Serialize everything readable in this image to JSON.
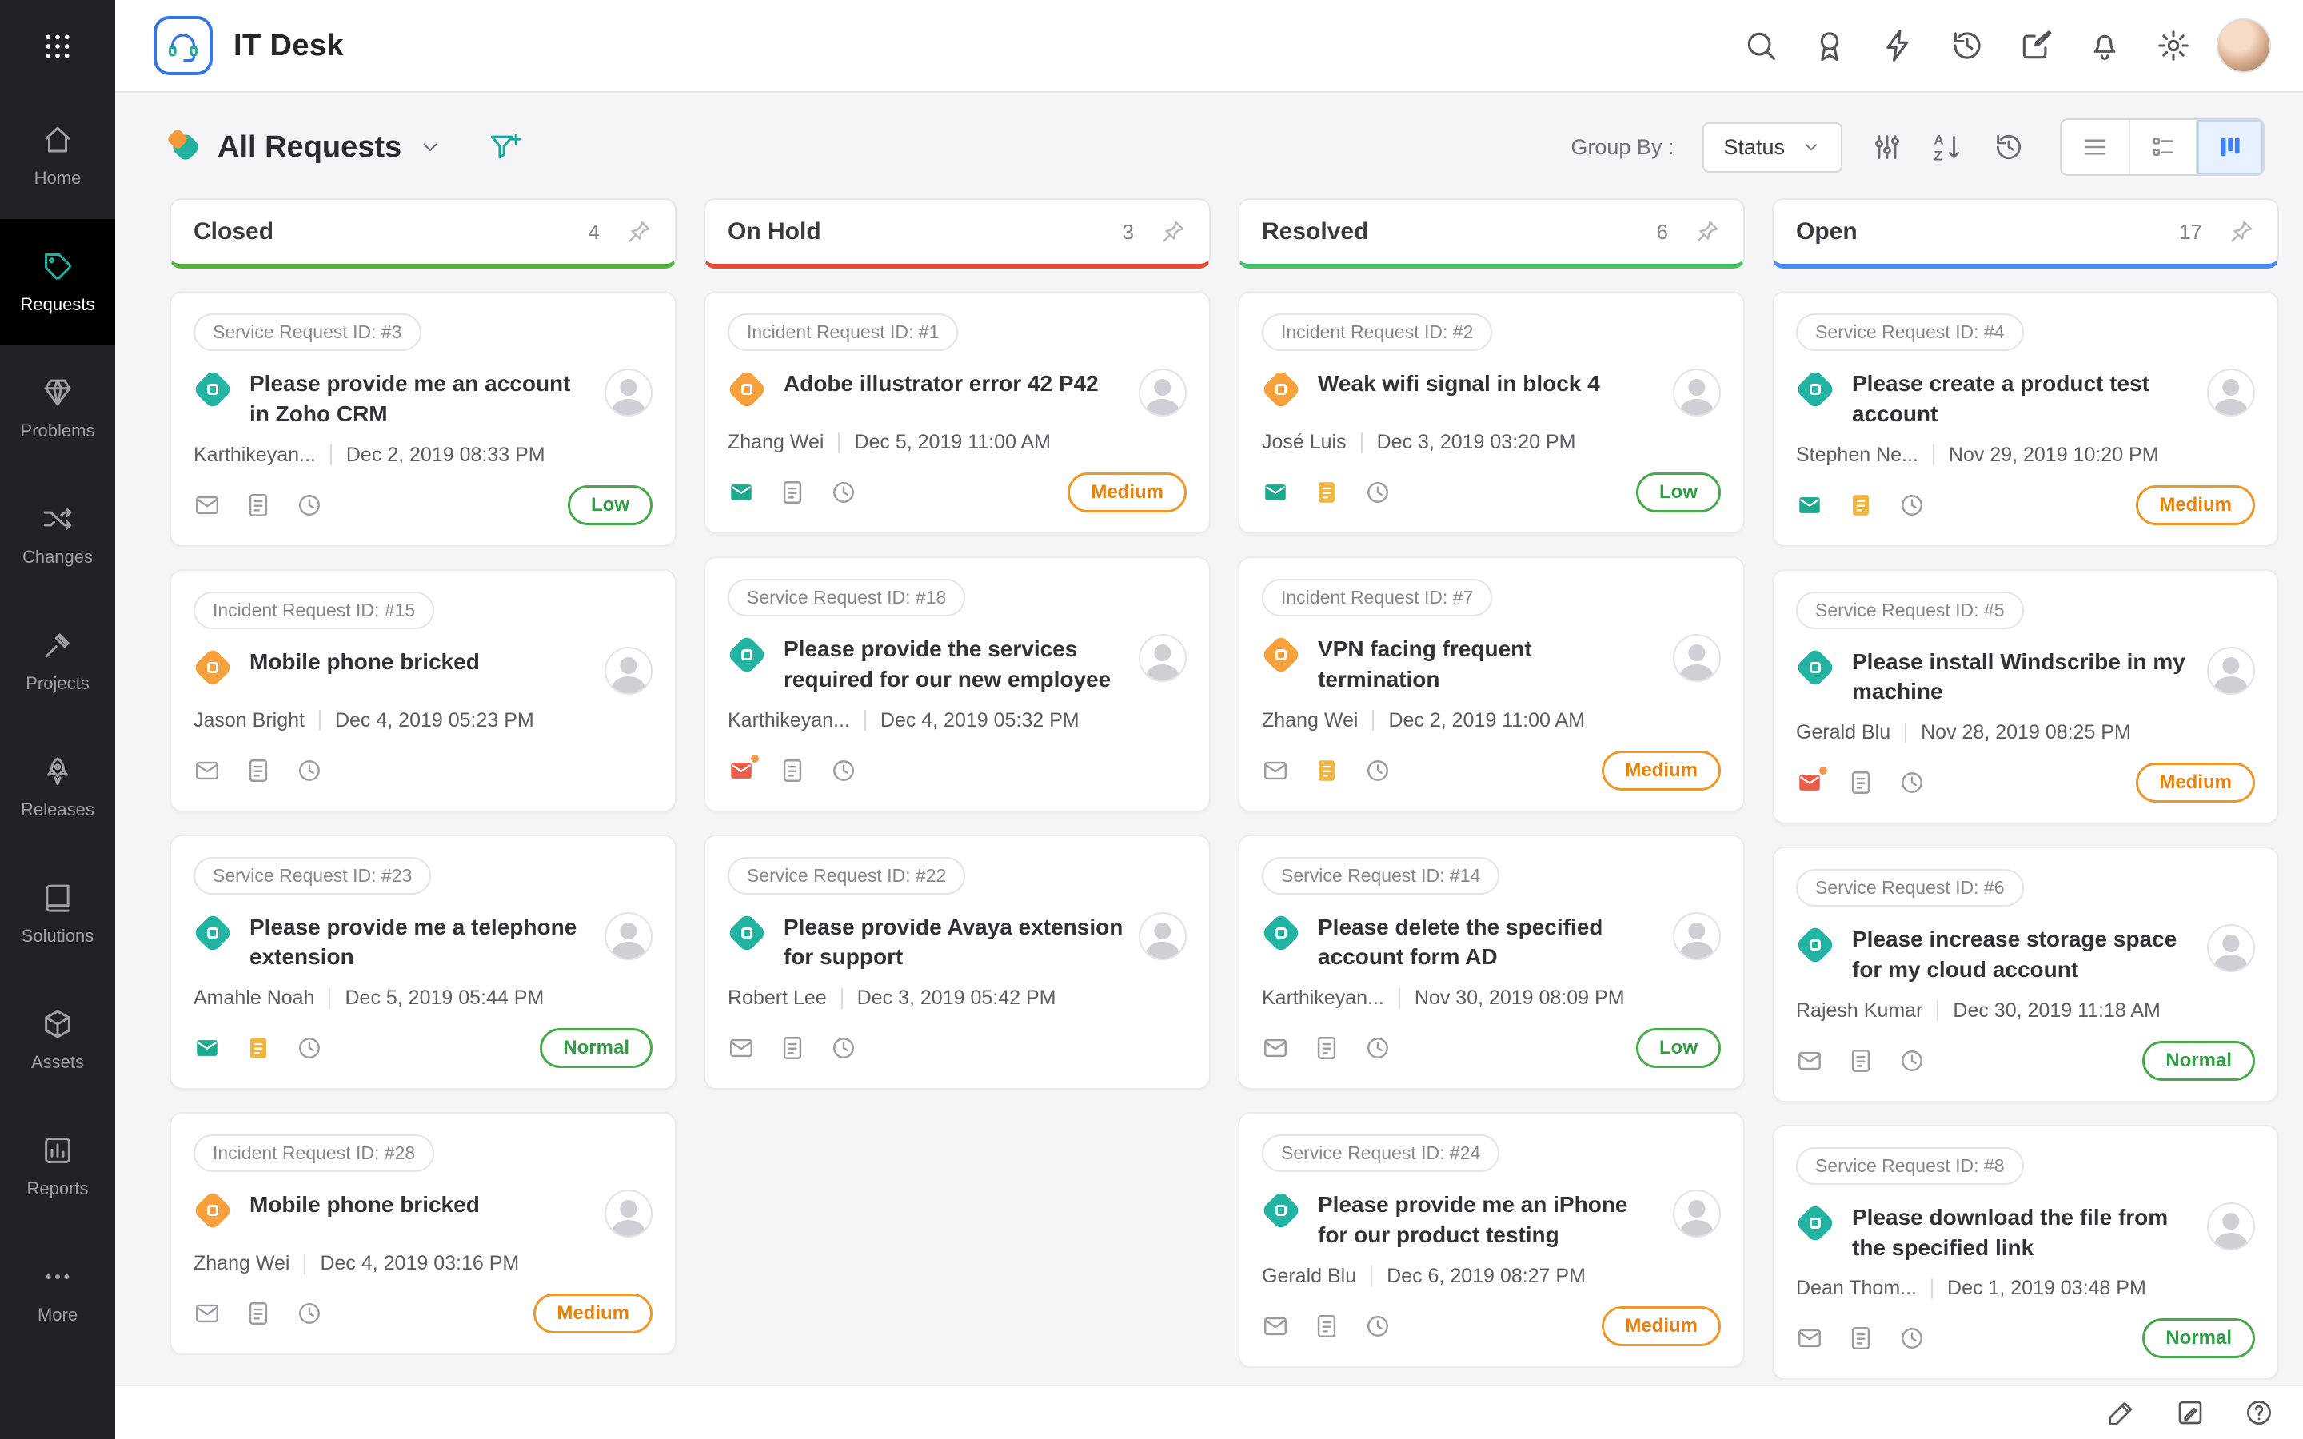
{
  "header": {
    "app_name": "IT Desk",
    "actions": [
      "search",
      "rewards",
      "quick-actions",
      "history",
      "feedback",
      "notifications",
      "settings"
    ]
  },
  "sidebar": {
    "items": [
      {
        "id": "home",
        "label": "Home",
        "icon": "home",
        "active": false
      },
      {
        "id": "requests",
        "label": "Requests",
        "icon": "requests",
        "active": true
      },
      {
        "id": "problems",
        "label": "Problems",
        "icon": "problems",
        "active": false
      },
      {
        "id": "changes",
        "label": "Changes",
        "icon": "changes",
        "active": false
      },
      {
        "id": "projects",
        "label": "Projects",
        "icon": "projects",
        "active": false
      },
      {
        "id": "releases",
        "label": "Releases",
        "icon": "releases",
        "active": false
      },
      {
        "id": "solutions",
        "label": "Solutions",
        "icon": "solutions",
        "active": false
      },
      {
        "id": "assets",
        "label": "Assets",
        "icon": "assets",
        "active": false
      },
      {
        "id": "reports",
        "label": "Reports",
        "icon": "reports",
        "active": false
      },
      {
        "id": "more",
        "label": "More",
        "icon": "more",
        "active": false
      }
    ]
  },
  "toolbar": {
    "view_title": "All Requests",
    "group_by_label": "Group By :",
    "group_by_value": "Status",
    "tools": [
      "sliders",
      "sort",
      "timeline"
    ],
    "views": [
      {
        "name": "list-view",
        "active": false
      },
      {
        "name": "table-view",
        "active": false
      },
      {
        "name": "kanban-view",
        "active": true
      }
    ]
  },
  "board": {
    "columns": [
      {
        "id": "closed",
        "title": "Closed",
        "count": 4,
        "accent": "#54b240",
        "cards": [
          {
            "tag": "Service Request ID: #3",
            "type": "service",
            "title": "Please provide me an account in Zoho CRM",
            "requester": "Karthikeyan...",
            "date": "Dec 2, 2019 08:33 PM",
            "priority": {
              "label": "Low",
              "tone": "green"
            },
            "mail": "default",
            "note": "default"
          },
          {
            "tag": "Incident Request ID: #15",
            "type": "incident",
            "title": "Mobile phone bricked",
            "requester": "Jason Bright",
            "date": "Dec 4, 2019 05:23 PM",
            "priority": null,
            "mail": "default",
            "note": "default"
          },
          {
            "tag": "Service Request ID: #23",
            "type": "service",
            "title": "Please provide me a telephone extension",
            "requester": "Amahle Noah",
            "date": "Dec 5, 2019 05:44 PM",
            "priority": {
              "label": "Normal",
              "tone": "green"
            },
            "mail": "green",
            "note": "yellow"
          },
          {
            "tag": "Incident Request ID: #28",
            "type": "incident",
            "title": "Mobile phone bricked",
            "requester": "Zhang Wei",
            "date": "Dec 4, 2019 03:16 PM",
            "priority": {
              "label": "Medium",
              "tone": "orange"
            },
            "mail": "default",
            "note": "default"
          }
        ]
      },
      {
        "id": "on-hold",
        "title": "On Hold",
        "count": 3,
        "accent": "#ea4c3c",
        "cards": [
          {
            "tag": "Incident Request ID: #1",
            "type": "incident",
            "title": "Adobe illustrator error 42 P42",
            "requester": "Zhang Wei",
            "date": "Dec 5, 2019 11:00 AM",
            "priority": {
              "label": "Medium",
              "tone": "orange"
            },
            "mail": "green",
            "note": "default"
          },
          {
            "tag": "Service Request ID: #18",
            "type": "service",
            "title": "Please provide the services required for our new employee",
            "requester": "Karthikeyan...",
            "date": "Dec 4, 2019 05:32 PM",
            "priority": null,
            "mail": "red-dot",
            "note": "default"
          },
          {
            "tag": "Service Request ID: #22",
            "type": "service",
            "title": "Please provide Avaya extension for support",
            "requester": "Robert Lee",
            "date": "Dec 3, 2019 05:42 PM",
            "priority": null,
            "mail": "default",
            "note": "default"
          }
        ]
      },
      {
        "id": "resolved",
        "title": "Resolved",
        "count": 6,
        "accent": "#47c16a",
        "cards": [
          {
            "tag": "Incident Request ID: #2",
            "type": "incident",
            "title": "Weak wifi signal in block 4",
            "requester": "José Luis",
            "date": "Dec 3, 2019 03:20 PM",
            "priority": {
              "label": "Low",
              "tone": "green"
            },
            "mail": "green",
            "note": "yellow"
          },
          {
            "tag": "Incident Request ID: #7",
            "type": "incident",
            "title": "VPN facing frequent termination",
            "requester": "Zhang Wei",
            "date": "Dec 2, 2019 11:00 AM",
            "priority": {
              "label": "Medium",
              "tone": "orange"
            },
            "mail": "default",
            "note": "yellow"
          },
          {
            "tag": "Service Request ID: #14",
            "type": "service",
            "title": "Please delete the specified account form AD",
            "requester": "Karthikeyan...",
            "date": "Nov 30, 2019 08:09 PM",
            "priority": {
              "label": "Low",
              "tone": "green"
            },
            "mail": "default",
            "note": "default"
          },
          {
            "tag": "Service Request ID: #24",
            "type": "service",
            "title": "Please provide me an iPhone for our product testing",
            "requester": "Gerald Blu",
            "date": "Dec 6, 2019 08:27 PM",
            "priority": {
              "label": "Medium",
              "tone": "orange"
            },
            "mail": "default",
            "note": "default"
          }
        ]
      },
      {
        "id": "open",
        "title": "Open",
        "count": 17,
        "accent": "#4b8bf5",
        "cards": [
          {
            "tag": "Service Request ID: #4",
            "type": "service",
            "title": "Please create a product test account",
            "requester": "Stephen Ne...",
            "date": "Nov 29, 2019 10:20 PM",
            "priority": {
              "label": "Medium",
              "tone": "orange"
            },
            "mail": "green",
            "note": "yellow"
          },
          {
            "tag": "Service Request ID: #5",
            "type": "service",
            "title": "Please install Windscribe in my machine",
            "requester": "Gerald Blu",
            "date": "Nov 28, 2019 08:25 PM",
            "priority": {
              "label": "Medium",
              "tone": "orange"
            },
            "mail": "red-dot",
            "note": "default"
          },
          {
            "tag": "Service Request ID: #6",
            "type": "service",
            "title": "Please increase storage space for my cloud account",
            "requester": "Rajesh Kumar",
            "date": "Dec 30, 2019 11:18 AM",
            "priority": {
              "label": "Normal",
              "tone": "green"
            },
            "mail": "default",
            "note": "default"
          },
          {
            "tag": "Service Request ID: #8",
            "type": "service",
            "title": "Please download the file from the specified link",
            "requester": "Dean Thom...",
            "date": "Dec 1, 2019 03:48 PM",
            "priority": {
              "label": "Normal",
              "tone": "green"
            },
            "mail": "default",
            "note": "default"
          }
        ]
      }
    ]
  },
  "footer": {
    "actions": [
      "customize",
      "write",
      "help"
    ]
  }
}
